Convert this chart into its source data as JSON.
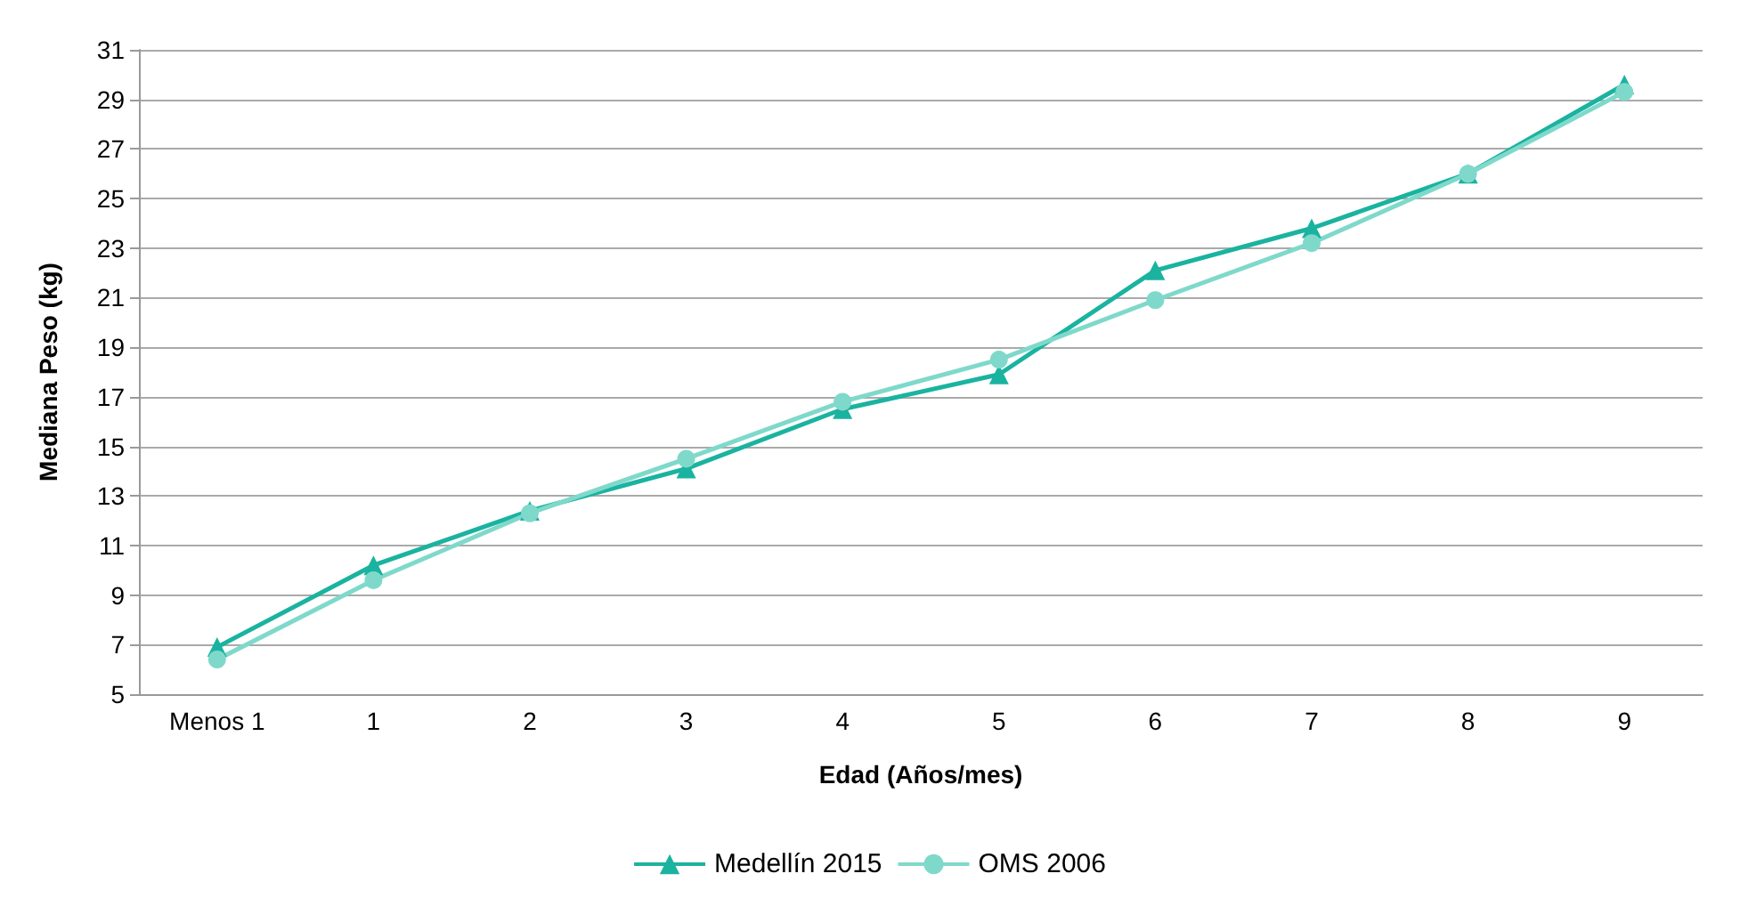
{
  "chart_data": {
    "type": "line",
    "xlabel": "Edad (Años/mes)",
    "ylabel": "Mediana Peso (kg)",
    "categories": [
      "Menos 1",
      "1",
      "2",
      "3",
      "4",
      "5",
      "6",
      "7",
      "8",
      "9"
    ],
    "series": [
      {
        "name": "Medellín 2015",
        "color": "#1ab3a0",
        "marker": "triangle",
        "values": [
          6.9,
          10.2,
          12.4,
          14.1,
          16.5,
          17.9,
          22.1,
          23.8,
          26.0,
          29.6
        ]
      },
      {
        "name": "OMS 2006",
        "color": "#7fd9cb",
        "marker": "circle",
        "values": [
          6.4,
          9.6,
          12.3,
          14.5,
          16.8,
          18.5,
          20.9,
          23.2,
          26.0,
          29.3
        ]
      }
    ],
    "ylim": [
      5,
      31
    ],
    "yticks": [
      5,
      7,
      9,
      11,
      13,
      15,
      17,
      19,
      21,
      23,
      25,
      27,
      29,
      31
    ],
    "grid": "y",
    "legend": "bottom",
    "line_style": "solid"
  }
}
